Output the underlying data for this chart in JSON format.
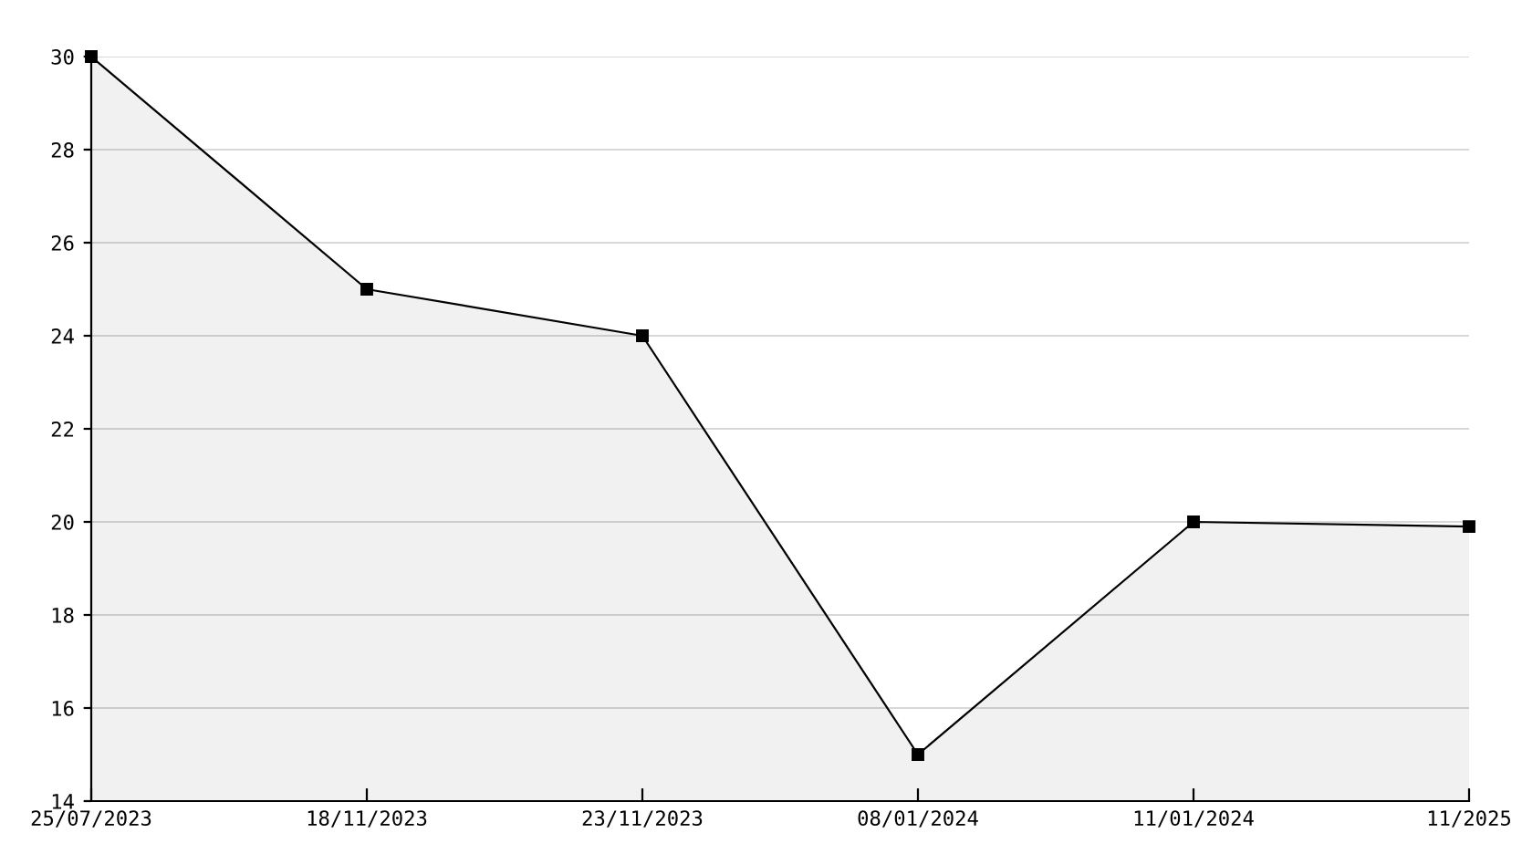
{
  "chart_data": {
    "type": "area",
    "categories": [
      "25/07/2023",
      "18/11/2023",
      "23/11/2023",
      "08/01/2024",
      "11/01/2024",
      "11/2025"
    ],
    "series": [
      {
        "color": "#000000",
        "values": [
          30,
          25,
          24,
          15,
          20,
          19.9
        ]
      }
    ],
    "ylim": [
      14,
      30
    ],
    "yticks": [
      14,
      16,
      18,
      20,
      22,
      24,
      26,
      28,
      30
    ],
    "grid": "y",
    "marker": "square",
    "line_style": "solid",
    "legend": false
  }
}
